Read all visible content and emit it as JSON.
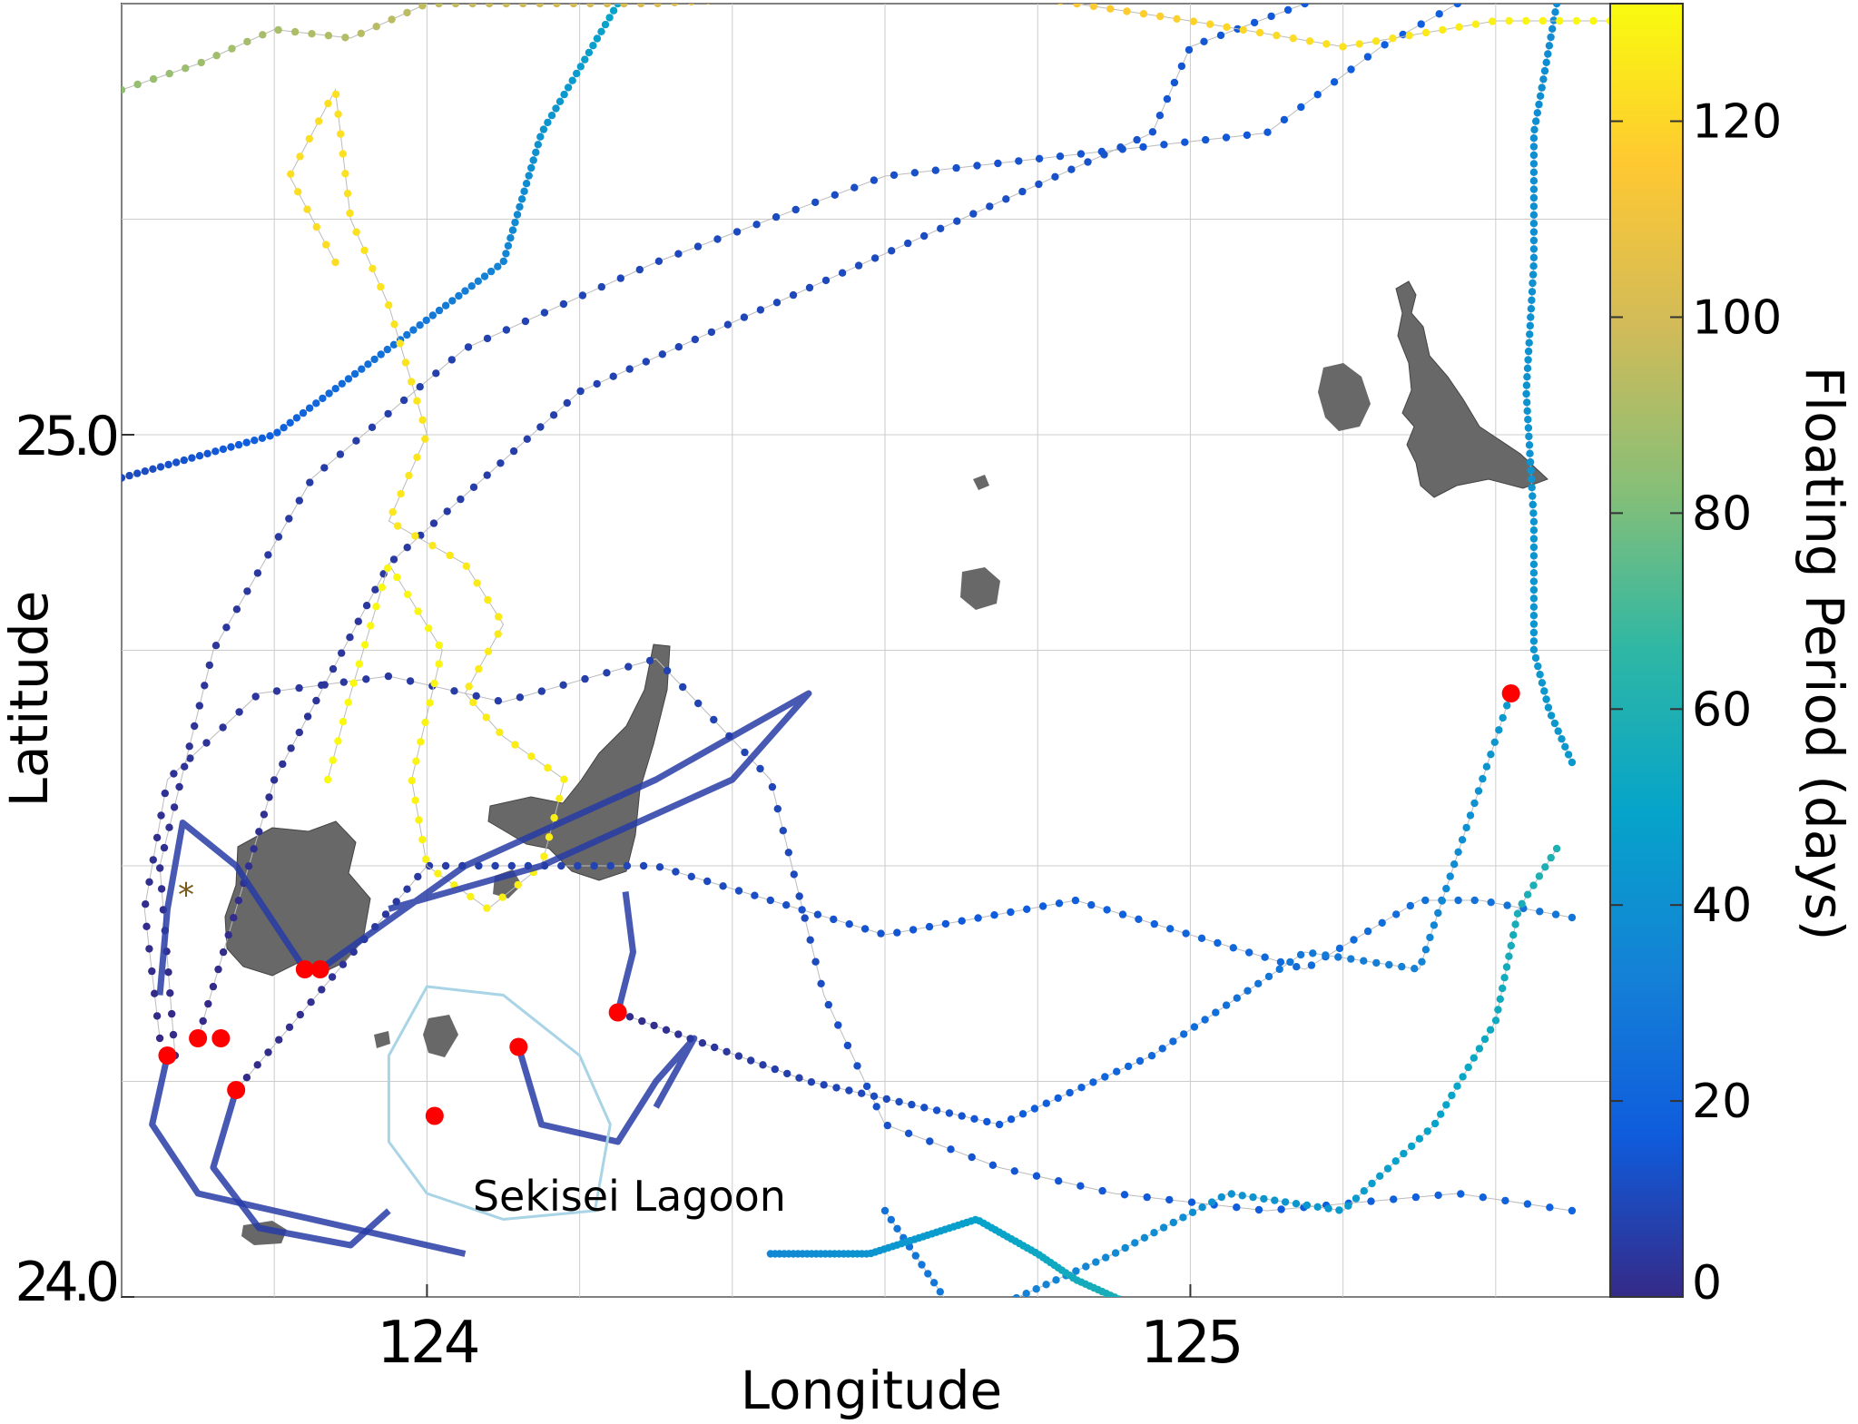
{
  "map": {
    "xlabel": "Longitude",
    "ylabel": "Latitude",
    "x_ticks": [
      {
        "value": 124,
        "label": "124"
      },
      {
        "value": 125,
        "label": "125"
      }
    ],
    "y_ticks": [
      {
        "value": 25.0,
        "label": "25.0"
      },
      {
        "value": 24.0,
        "label": "24.0"
      }
    ],
    "x_range": [
      123.6,
      125.55
    ],
    "y_range": [
      24.0,
      25.5
    ],
    "grid": true,
    "annotation": {
      "text": "Sekisei Lagoon",
      "lon": 124.06,
      "lat": 24.1
    }
  },
  "colorbar": {
    "label": "Floating Period (days)",
    "ticks": [
      "0",
      "20",
      "40",
      "60",
      "80",
      "100",
      "120"
    ],
    "tick_values": [
      0,
      20,
      40,
      60,
      80,
      100,
      120
    ],
    "range": [
      0,
      132
    ],
    "colormap": "parula",
    "stops": [
      "#352a87",
      "#0f5cdd",
      "#1481d6",
      "#06a4ca",
      "#2eb7a4",
      "#87bf77",
      "#d1bb59",
      "#fec832",
      "#f9fb0e"
    ]
  },
  "colors": {
    "land": "#686868",
    "release_marker": "#ff0000",
    "lagoon_outline": "#a8d4e6",
    "grid": "#cccccc"
  },
  "chart_data": {
    "type": "scatter",
    "title": "",
    "xlabel": "Longitude",
    "ylabel": "Latitude",
    "xlim": [
      123.6,
      125.55
    ],
    "ylim": [
      24.0,
      25.5
    ],
    "color_variable": "Floating Period (days)",
    "release_points": [
      {
        "lon": 123.66,
        "lat": 24.28
      },
      {
        "lon": 123.7,
        "lat": 24.3
      },
      {
        "lon": 123.73,
        "lat": 24.3
      },
      {
        "lon": 123.75,
        "lat": 24.24
      },
      {
        "lon": 123.84,
        "lat": 24.38
      },
      {
        "lon": 123.86,
        "lat": 24.38
      },
      {
        "lon": 124.01,
        "lat": 24.21
      },
      {
        "lon": 124.12,
        "lat": 24.29
      },
      {
        "lon": 124.25,
        "lat": 24.33
      },
      {
        "lon": 125.42,
        "lat": 24.7
      }
    ],
    "tracks": [
      {
        "days": [
          0,
          20
        ],
        "points": [
          [
            123.65,
            24.3
          ],
          [
            123.63,
            24.45
          ],
          [
            123.66,
            24.6
          ],
          [
            123.78,
            24.7
          ],
          [
            123.95,
            24.72
          ],
          [
            124.1,
            24.69
          ],
          [
            124.3,
            24.74
          ],
          [
            124.45,
            24.6
          ],
          [
            124.52,
            24.35
          ],
          [
            124.6,
            24.2
          ],
          [
            124.75,
            24.15
          ],
          [
            124.9,
            24.12
          ],
          [
            125.1,
            24.1
          ],
          [
            125.35,
            24.12
          ],
          [
            125.5,
            24.1
          ]
        ]
      },
      {
        "days": [
          0,
          18
        ],
        "points": [
          [
            123.67,
            24.28
          ],
          [
            123.65,
            24.5
          ],
          [
            123.72,
            24.75
          ],
          [
            123.85,
            24.95
          ],
          [
            124.05,
            25.1
          ],
          [
            124.3,
            25.2
          ],
          [
            124.6,
            25.3
          ],
          [
            124.9,
            25.33
          ],
          [
            125.1,
            25.35
          ],
          [
            125.25,
            25.45
          ],
          [
            125.35,
            25.5
          ]
        ]
      },
      {
        "days": [
          0,
          16
        ],
        "points": [
          [
            123.7,
            24.3
          ],
          [
            123.8,
            24.6
          ],
          [
            123.95,
            24.85
          ],
          [
            124.2,
            25.05
          ],
          [
            124.45,
            25.15
          ],
          [
            124.7,
            25.25
          ],
          [
            124.95,
            25.35
          ],
          [
            125.0,
            25.45
          ],
          [
            125.15,
            25.5
          ]
        ]
      },
      {
        "days": [
          0,
          28
        ],
        "points": [
          [
            123.75,
            24.24
          ],
          [
            124.0,
            24.5
          ],
          [
            124.3,
            24.5
          ],
          [
            124.6,
            24.42
          ],
          [
            124.85,
            24.46
          ],
          [
            125.0,
            24.42
          ],
          [
            125.15,
            24.38
          ],
          [
            125.3,
            24.46
          ],
          [
            125.38,
            24.46
          ],
          [
            125.5,
            24.44
          ]
        ]
      },
      {
        "days": [
          0,
          45
        ],
        "points": [
          [
            124.25,
            24.33
          ],
          [
            124.5,
            24.25
          ],
          [
            124.75,
            24.2
          ],
          [
            124.95,
            24.28
          ],
          [
            125.15,
            24.4
          ],
          [
            125.3,
            24.38
          ],
          [
            125.42,
            24.7
          ]
        ]
      },
      {
        "days": [
          26,
          60
        ],
        "points": [
          [
            124.6,
            24.1
          ],
          [
            124.7,
            23.97
          ],
          [
            124.9,
            24.05
          ],
          [
            125.05,
            24.12
          ],
          [
            125.2,
            24.1
          ],
          [
            125.32,
            24.2
          ],
          [
            125.4,
            24.32
          ],
          [
            125.43,
            24.45
          ],
          [
            125.48,
            24.52
          ]
        ]
      },
      {
        "days": [
          36,
          60
        ],
        "points": [
          [
            124.45,
            24.05
          ],
          [
            124.58,
            24.05
          ],
          [
            124.72,
            24.09
          ],
          [
            124.8,
            24.05
          ],
          [
            124.85,
            24.02
          ],
          [
            124.9,
            24.0
          ],
          [
            124.95,
            23.98
          ]
        ]
      },
      {
        "days": [
          38,
          44
        ],
        "points": [
          [
            125.48,
            25.5
          ],
          [
            125.45,
            25.35
          ],
          [
            125.45,
            25.2
          ],
          [
            125.44,
            25.05
          ],
          [
            125.45,
            24.9
          ],
          [
            125.45,
            24.75
          ],
          [
            125.47,
            24.68
          ],
          [
            125.5,
            24.62
          ]
        ]
      },
      {
        "days": [
          10,
          50
        ],
        "points": [
          [
            123.6,
            24.95
          ],
          [
            123.8,
            25.0
          ],
          [
            123.95,
            25.1
          ],
          [
            124.1,
            25.2
          ],
          [
            124.15,
            25.35
          ],
          [
            124.25,
            25.5
          ]
        ]
      },
      {
        "days": [
          85,
          132
        ],
        "points": [
          [
            123.6,
            25.4
          ],
          [
            123.7,
            25.43
          ],
          [
            123.8,
            25.47
          ],
          [
            123.9,
            25.46
          ],
          [
            124.0,
            25.5
          ],
          [
            124.3,
            25.5
          ],
          [
            124.7,
            25.52
          ],
          [
            125.0,
            25.48
          ],
          [
            125.2,
            25.45
          ],
          [
            125.4,
            25.48
          ],
          [
            125.55,
            25.48
          ]
        ]
      },
      {
        "days": [
          122,
          132
        ],
        "points": [
          [
            123.88,
            25.2
          ],
          [
            123.82,
            25.3
          ],
          [
            123.88,
            25.4
          ],
          [
            123.9,
            25.25
          ],
          [
            123.95,
            25.15
          ],
          [
            124.0,
            25.0
          ],
          [
            123.95,
            24.9
          ],
          [
            124.05,
            24.85
          ],
          [
            124.1,
            24.78
          ],
          [
            124.05,
            24.7
          ],
          [
            124.1,
            24.65
          ],
          [
            124.18,
            24.6
          ],
          [
            124.15,
            24.5
          ],
          [
            124.08,
            24.45
          ],
          [
            124.0,
            24.5
          ],
          [
            123.98,
            24.6
          ],
          [
            124.02,
            24.75
          ],
          [
            123.95,
            24.85
          ],
          [
            123.9,
            24.7
          ],
          [
            123.87,
            24.6
          ]
        ]
      }
    ],
    "thick_tracks_days": [
      0,
      12
    ],
    "lagoon_outline": [
      [
        124.0,
        24.36
      ],
      [
        124.1,
        24.35
      ],
      [
        124.2,
        24.28
      ],
      [
        124.24,
        24.2
      ],
      [
        124.22,
        24.1
      ],
      [
        124.1,
        24.09
      ],
      [
        124.0,
        24.12
      ],
      [
        123.95,
        24.18
      ],
      [
        123.95,
        24.28
      ]
    ]
  }
}
